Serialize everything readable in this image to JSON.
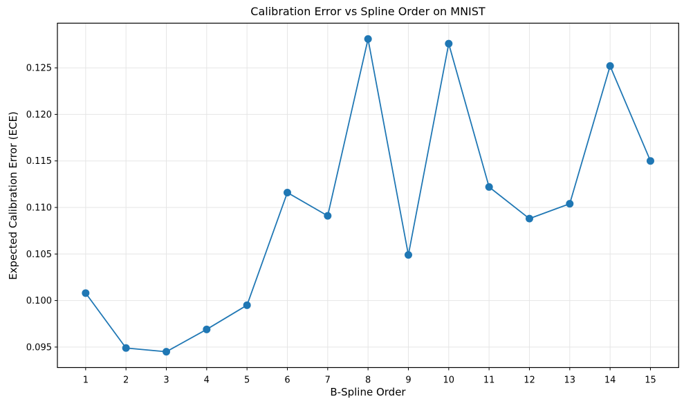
{
  "chart_data": {
    "type": "line",
    "title": "Calibration Error vs Spline Order on MNIST",
    "xlabel": "B-Spline Order",
    "ylabel": "Expected Calibration Error (ECE)",
    "x": [
      1,
      2,
      3,
      4,
      5,
      6,
      7,
      8,
      9,
      10,
      11,
      12,
      13,
      14,
      15
    ],
    "y": [
      0.1008,
      0.0949,
      0.0945,
      0.0969,
      0.0995,
      0.1116,
      0.1091,
      0.1281,
      0.1049,
      0.1276,
      0.1122,
      0.1088,
      0.1104,
      0.1252,
      0.115
    ],
    "series_name": "ECE",
    "x_ticks": [
      1,
      2,
      3,
      4,
      5,
      6,
      7,
      8,
      9,
      10,
      11,
      12,
      13,
      14,
      15
    ],
    "y_ticks": [
      0.095,
      0.1,
      0.105,
      0.11,
      0.115,
      0.12,
      0.125
    ],
    "y_tick_decimals": 3,
    "xlim": [
      0.3,
      15.7
    ],
    "ylim": [
      0.0928,
      0.1298
    ],
    "grid": true,
    "legend_position": "none",
    "line_color": "#1f77b4",
    "marker": "circle",
    "marker_radius": 5.5,
    "line_width": 1.8,
    "grid_color": "#e5e5e5",
    "axis_color": "#000000"
  }
}
